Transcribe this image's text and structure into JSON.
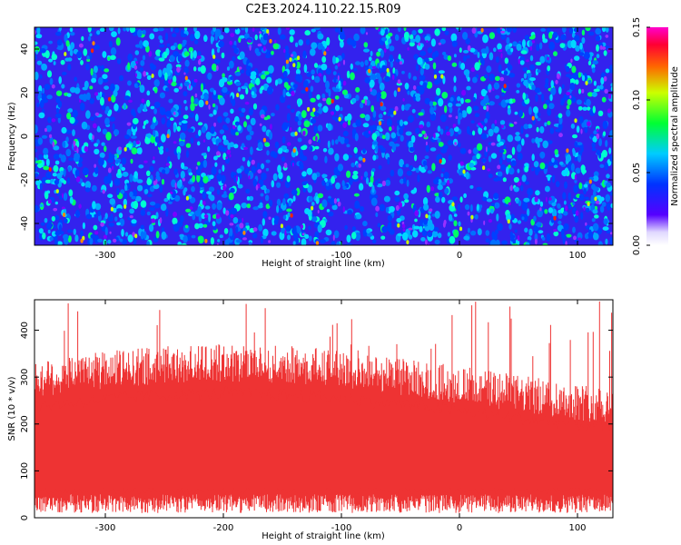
{
  "title": "C2E3.2024.110.22.15.R09",
  "chart_data": [
    {
      "type": "heatmap",
      "xlabel": "Height of straight line (km)",
      "ylabel": "Frequency (Hz)",
      "xlim": [
        -360,
        130
      ],
      "ylim": [
        -50,
        50
      ],
      "xticks": [
        -300,
        -200,
        -100,
        0,
        100
      ],
      "yticks": [
        -40,
        -20,
        0,
        20,
        40
      ],
      "colorbar": {
        "label": "Normalized spectral amplitude",
        "range": [
          0.0,
          0.15
        ],
        "ticks": [
          "0.00",
          "0.05",
          "0.10",
          "0.15"
        ],
        "colormap": "rainbow (purple-blue-cyan-green-yellow-red-magenta)"
      },
      "grid": false
    },
    {
      "type": "bar",
      "xlabel": "Height of straight line (km)",
      "ylabel": "SNR (10 * v/v)",
      "xlim": [
        -360,
        130
      ],
      "ylim": [
        0,
        465
      ],
      "xticks": [
        -300,
        -200,
        -100,
        0,
        100
      ],
      "yticks": [
        0,
        100,
        200,
        300,
        400
      ],
      "color": "#ee3333",
      "typical_band": [
        50,
        280
      ],
      "peak_max": 465,
      "grid": false
    }
  ]
}
